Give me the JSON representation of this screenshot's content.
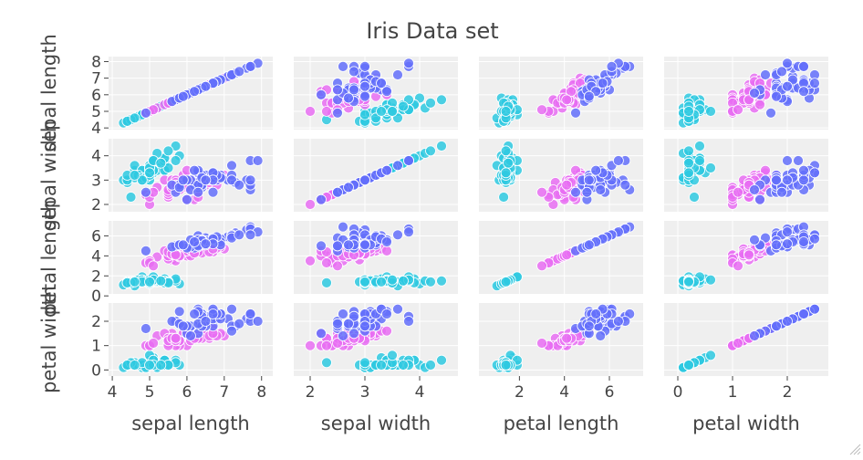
{
  "chart_data": {
    "type": "scatter",
    "title": "Iris Data set",
    "dimensions": [
      "sepal length",
      "sepal width",
      "petal length",
      "petal width"
    ],
    "axis_ranges": [
      [
        3.9,
        8.3
      ],
      [
        1.7,
        4.7
      ],
      [
        0.2,
        7.5
      ],
      [
        -0.25,
        2.75
      ]
    ],
    "ticks": [
      [
        4,
        5,
        6,
        7,
        8
      ],
      [
        2,
        3,
        4
      ],
      [
        0,
        2,
        4,
        6
      ],
      [
        0,
        1,
        2
      ]
    ],
    "x_ticks_petal_length": [
      2,
      4,
      6
    ],
    "grid": true,
    "legend": "none",
    "series": [
      {
        "color": "#2ec9e1",
        "points": [
          [
            5.1,
            3.5,
            1.4,
            0.2
          ],
          [
            4.9,
            3.0,
            1.4,
            0.2
          ],
          [
            4.7,
            3.2,
            1.3,
            0.2
          ],
          [
            4.6,
            3.1,
            1.5,
            0.2
          ],
          [
            5.0,
            3.6,
            1.4,
            0.2
          ],
          [
            5.4,
            3.9,
            1.7,
            0.4
          ],
          [
            4.6,
            3.4,
            1.4,
            0.3
          ],
          [
            5.0,
            3.4,
            1.5,
            0.2
          ],
          [
            4.4,
            2.9,
            1.4,
            0.2
          ],
          [
            4.9,
            3.1,
            1.5,
            0.1
          ],
          [
            5.4,
            3.7,
            1.5,
            0.2
          ],
          [
            4.8,
            3.4,
            1.6,
            0.2
          ],
          [
            4.8,
            3.0,
            1.4,
            0.1
          ],
          [
            4.3,
            3.0,
            1.1,
            0.1
          ],
          [
            5.8,
            4.0,
            1.2,
            0.2
          ],
          [
            5.7,
            4.4,
            1.5,
            0.4
          ],
          [
            5.4,
            3.9,
            1.3,
            0.4
          ],
          [
            5.1,
            3.5,
            1.4,
            0.3
          ],
          [
            5.7,
            3.8,
            1.7,
            0.3
          ],
          [
            5.1,
            3.8,
            1.5,
            0.3
          ],
          [
            5.4,
            3.4,
            1.7,
            0.2
          ],
          [
            5.1,
            3.7,
            1.5,
            0.4
          ],
          [
            4.6,
            3.6,
            1.0,
            0.2
          ],
          [
            5.1,
            3.3,
            1.7,
            0.5
          ],
          [
            4.8,
            3.4,
            1.9,
            0.2
          ],
          [
            5.0,
            3.0,
            1.6,
            0.2
          ],
          [
            5.0,
            3.4,
            1.6,
            0.4
          ],
          [
            5.2,
            3.5,
            1.5,
            0.2
          ],
          [
            5.2,
            3.4,
            1.4,
            0.2
          ],
          [
            4.7,
            3.2,
            1.6,
            0.2
          ],
          [
            4.8,
            3.1,
            1.6,
            0.2
          ],
          [
            5.4,
            3.4,
            1.5,
            0.4
          ],
          [
            5.2,
            4.1,
            1.5,
            0.1
          ],
          [
            5.5,
            4.2,
            1.4,
            0.2
          ],
          [
            4.9,
            3.1,
            1.5,
            0.1
          ],
          [
            5.0,
            3.2,
            1.2,
            0.2
          ],
          [
            5.5,
            3.5,
            1.3,
            0.2
          ],
          [
            4.4,
            3.0,
            1.3,
            0.2
          ],
          [
            5.1,
            3.4,
            1.5,
            0.2
          ],
          [
            5.0,
            3.5,
            1.3,
            0.3
          ],
          [
            4.5,
            2.3,
            1.3,
            0.3
          ],
          [
            4.4,
            3.2,
            1.3,
            0.2
          ],
          [
            5.0,
            3.5,
            1.6,
            0.6
          ],
          [
            5.1,
            3.8,
            1.9,
            0.4
          ],
          [
            4.8,
            3.0,
            1.4,
            0.3
          ],
          [
            5.1,
            3.8,
            1.6,
            0.2
          ],
          [
            4.6,
            3.2,
            1.4,
            0.2
          ],
          [
            5.3,
            3.7,
            1.5,
            0.2
          ],
          [
            5.0,
            3.3,
            1.4,
            0.2
          ]
        ]
      },
      {
        "color": "#e86df2",
        "points": [
          [
            7.0,
            3.2,
            4.7,
            1.4
          ],
          [
            6.4,
            3.2,
            4.5,
            1.5
          ],
          [
            6.9,
            3.1,
            4.9,
            1.5
          ],
          [
            5.5,
            2.3,
            4.0,
            1.3
          ],
          [
            6.5,
            2.8,
            4.6,
            1.5
          ],
          [
            5.7,
            2.8,
            4.5,
            1.3
          ],
          [
            6.3,
            3.3,
            4.7,
            1.6
          ],
          [
            4.9,
            2.4,
            3.3,
            1.0
          ],
          [
            6.6,
            2.9,
            4.6,
            1.3
          ],
          [
            5.2,
            2.7,
            3.9,
            1.4
          ],
          [
            5.0,
            2.0,
            3.5,
            1.0
          ],
          [
            5.9,
            3.0,
            4.2,
            1.5
          ],
          [
            6.0,
            2.2,
            4.0,
            1.0
          ],
          [
            6.1,
            2.9,
            4.7,
            1.4
          ],
          [
            5.6,
            2.9,
            3.6,
            1.3
          ],
          [
            6.7,
            3.1,
            4.4,
            1.4
          ],
          [
            5.6,
            3.0,
            4.5,
            1.5
          ],
          [
            5.8,
            2.7,
            4.1,
            1.0
          ],
          [
            6.2,
            2.2,
            4.5,
            1.5
          ],
          [
            5.6,
            2.5,
            3.9,
            1.1
          ],
          [
            5.9,
            3.2,
            4.8,
            1.8
          ],
          [
            6.1,
            2.8,
            4.0,
            1.3
          ],
          [
            6.3,
            2.5,
            4.9,
            1.5
          ],
          [
            6.1,
            2.8,
            4.7,
            1.2
          ],
          [
            6.4,
            2.9,
            4.3,
            1.3
          ],
          [
            6.6,
            3.0,
            4.4,
            1.4
          ],
          [
            6.8,
            2.8,
            4.8,
            1.4
          ],
          [
            6.7,
            3.0,
            5.0,
            1.7
          ],
          [
            6.0,
            2.9,
            4.5,
            1.5
          ],
          [
            5.7,
            2.6,
            3.5,
            1.0
          ],
          [
            5.5,
            2.4,
            3.8,
            1.1
          ],
          [
            5.5,
            2.4,
            3.7,
            1.0
          ],
          [
            5.8,
            2.7,
            3.9,
            1.2
          ],
          [
            6.0,
            2.7,
            5.1,
            1.6
          ],
          [
            5.4,
            3.0,
            4.5,
            1.5
          ],
          [
            6.0,
            3.4,
            4.5,
            1.6
          ],
          [
            6.7,
            3.1,
            4.7,
            1.5
          ],
          [
            6.3,
            2.3,
            4.4,
            1.3
          ],
          [
            5.6,
            3.0,
            4.1,
            1.3
          ],
          [
            5.5,
            2.5,
            4.0,
            1.3
          ],
          [
            5.5,
            2.6,
            4.4,
            1.2
          ],
          [
            6.1,
            3.0,
            4.6,
            1.4
          ],
          [
            5.8,
            2.6,
            4.0,
            1.2
          ],
          [
            5.0,
            2.3,
            3.3,
            1.0
          ],
          [
            5.6,
            2.7,
            4.2,
            1.3
          ],
          [
            5.7,
            3.0,
            4.2,
            1.2
          ],
          [
            5.7,
            2.9,
            4.2,
            1.3
          ],
          [
            6.2,
            2.9,
            4.3,
            1.3
          ],
          [
            5.1,
            2.5,
            3.0,
            1.1
          ],
          [
            5.7,
            2.8,
            4.1,
            1.3
          ]
        ]
      },
      {
        "color": "#636efa",
        "points": [
          [
            6.3,
            3.3,
            6.0,
            2.5
          ],
          [
            5.8,
            2.7,
            5.1,
            1.9
          ],
          [
            7.1,
            3.0,
            5.9,
            2.1
          ],
          [
            6.3,
            2.9,
            5.6,
            1.8
          ],
          [
            6.5,
            3.0,
            5.8,
            2.2
          ],
          [
            7.6,
            3.0,
            6.6,
            2.1
          ],
          [
            4.9,
            2.5,
            4.5,
            1.7
          ],
          [
            7.3,
            2.9,
            6.3,
            1.8
          ],
          [
            6.7,
            2.5,
            5.8,
            1.8
          ],
          [
            7.2,
            3.6,
            6.1,
            2.5
          ],
          [
            6.5,
            3.2,
            5.1,
            2.0
          ],
          [
            6.4,
            2.7,
            5.3,
            1.9
          ],
          [
            6.8,
            3.0,
            5.5,
            2.1
          ],
          [
            5.7,
            2.5,
            5.0,
            2.0
          ],
          [
            5.8,
            2.8,
            5.1,
            2.4
          ],
          [
            6.4,
            3.2,
            5.3,
            2.3
          ],
          [
            6.5,
            3.0,
            5.5,
            1.8
          ],
          [
            7.7,
            3.8,
            6.7,
            2.2
          ],
          [
            7.7,
            2.6,
            6.9,
            2.3
          ],
          [
            6.0,
            2.2,
            5.0,
            1.5
          ],
          [
            6.9,
            3.2,
            5.7,
            2.3
          ],
          [
            5.6,
            2.8,
            4.9,
            2.0
          ],
          [
            7.7,
            2.8,
            6.7,
            2.0
          ],
          [
            6.3,
            2.7,
            4.9,
            1.8
          ],
          [
            6.7,
            3.3,
            5.7,
            2.1
          ],
          [
            7.2,
            3.2,
            6.0,
            1.8
          ],
          [
            6.2,
            2.8,
            4.8,
            1.8
          ],
          [
            6.1,
            3.0,
            4.9,
            1.8
          ],
          [
            6.4,
            2.8,
            5.6,
            2.1
          ],
          [
            7.2,
            3.0,
            5.8,
            1.6
          ],
          [
            7.4,
            2.8,
            6.1,
            1.9
          ],
          [
            7.9,
            3.8,
            6.4,
            2.0
          ],
          [
            6.4,
            2.8,
            5.6,
            2.2
          ],
          [
            6.3,
            2.8,
            5.1,
            1.5
          ],
          [
            6.1,
            2.6,
            5.6,
            1.4
          ],
          [
            7.7,
            3.0,
            6.1,
            2.3
          ],
          [
            6.3,
            3.4,
            5.6,
            2.4
          ],
          [
            6.4,
            3.1,
            5.5,
            1.8
          ],
          [
            6.0,
            3.0,
            4.8,
            1.8
          ],
          [
            6.9,
            3.1,
            5.4,
            2.1
          ],
          [
            6.7,
            3.1,
            5.6,
            2.4
          ],
          [
            6.9,
            3.1,
            5.1,
            2.3
          ],
          [
            5.8,
            2.7,
            5.1,
            1.9
          ],
          [
            6.8,
            3.2,
            5.9,
            2.3
          ],
          [
            6.7,
            3.3,
            5.7,
            2.5
          ],
          [
            6.7,
            3.0,
            5.2,
            2.3
          ],
          [
            6.3,
            2.5,
            5.0,
            1.9
          ],
          [
            6.5,
            3.0,
            5.2,
            2.0
          ],
          [
            6.2,
            3.4,
            5.4,
            2.3
          ],
          [
            5.9,
            3.0,
            5.1,
            1.8
          ]
        ]
      }
    ]
  }
}
